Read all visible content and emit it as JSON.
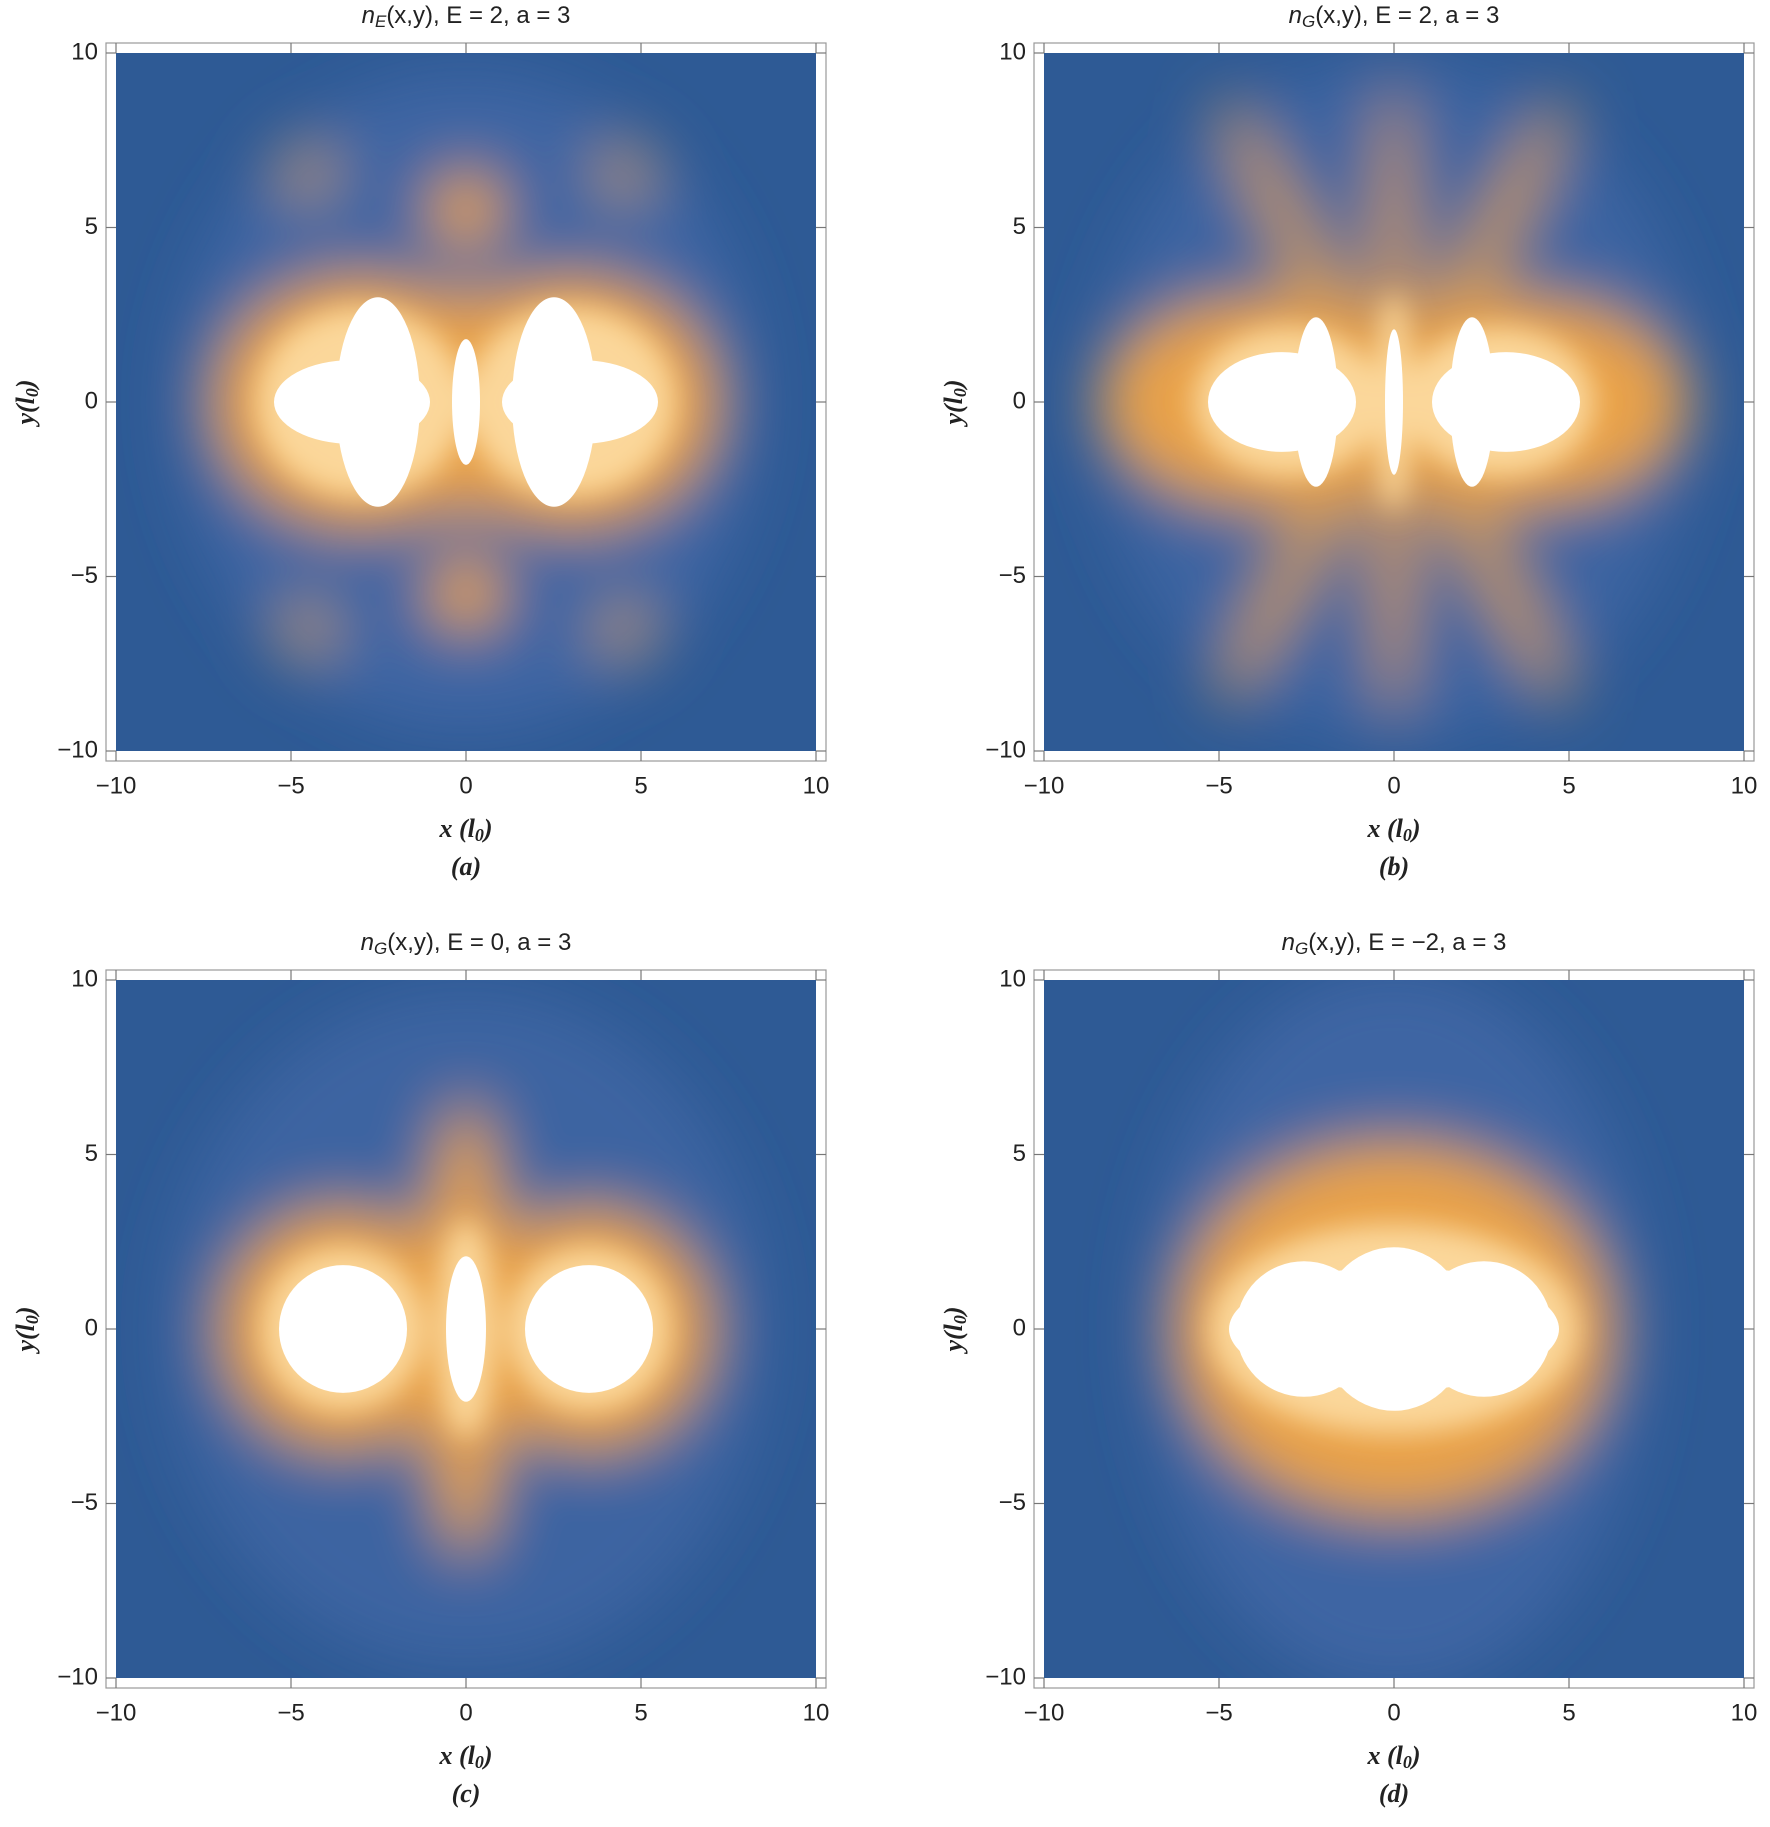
{
  "chart_data": [
    {
      "type": "density",
      "title": [
        "n",
        "E",
        "(x,y), E = 2, a = 3"
      ],
      "xlabel": [
        "x (l",
        "0",
        ")"
      ],
      "ylabel": [
        "y(l",
        "0",
        ")"
      ],
      "caption": "(a)",
      "xlim": [
        -10,
        10
      ],
      "ylim": [
        -10,
        10
      ],
      "xticks": [
        {
          "value": -10,
          "label": "−10"
        },
        {
          "value": -5,
          "label": "−5"
        },
        0,
        5,
        10
      ],
      "yticks": [
        {
          "value": -10,
          "label": "−10"
        },
        {
          "value": -5,
          "label": "−5"
        },
        0,
        5,
        10
      ]
    },
    {
      "type": "density",
      "title": [
        "n",
        "G",
        "(x,y), E = 2, a = 3"
      ],
      "xlabel": [
        "x (l",
        "0",
        ")"
      ],
      "ylabel": [
        "y(l",
        "0",
        ")"
      ],
      "caption": "(b)",
      "xlim": [
        -10,
        10
      ],
      "ylim": [
        -10,
        10
      ],
      "xticks": [
        {
          "value": -10,
          "label": "−10"
        },
        {
          "value": -5,
          "label": "−5"
        },
        0,
        5,
        10
      ],
      "yticks": [
        {
          "value": -10,
          "label": "−10"
        },
        {
          "value": -5,
          "label": "−5"
        },
        0,
        5,
        10
      ]
    },
    {
      "type": "density",
      "title": [
        "n",
        "G",
        "(x,y), E = 0, a = 3"
      ],
      "xlabel": [
        "x (l",
        "0",
        ")"
      ],
      "ylabel": [
        "y(l",
        "0",
        ")"
      ],
      "caption": "(c)",
      "xlim": [
        -10,
        10
      ],
      "ylim": [
        -10,
        10
      ],
      "xticks": [
        {
          "value": -10,
          "label": "−10"
        },
        {
          "value": -5,
          "label": "−5"
        },
        0,
        5,
        10
      ],
      "yticks": [
        {
          "value": -10,
          "label": "−10"
        },
        {
          "value": -5,
          "label": "−5"
        },
        0,
        5,
        10
      ]
    },
    {
      "type": "density",
      "title": [
        "n",
        "G",
        "(x,y), E = −2, a = 3"
      ],
      "xlabel": [
        "x (l",
        "0",
        ")"
      ],
      "ylabel": [
        "y(l",
        "0",
        ")"
      ],
      "caption": "(d)",
      "xlim": [
        -10,
        10
      ],
      "ylim": [
        -10,
        10
      ],
      "xticks": [
        {
          "value": -10,
          "label": "−10"
        },
        {
          "value": -5,
          "label": "−5"
        },
        0,
        5,
        10
      ],
      "yticks": [
        {
          "value": -10,
          "label": "−10"
        },
        {
          "value": -5,
          "label": "−5"
        },
        0,
        5,
        10
      ]
    }
  ]
}
